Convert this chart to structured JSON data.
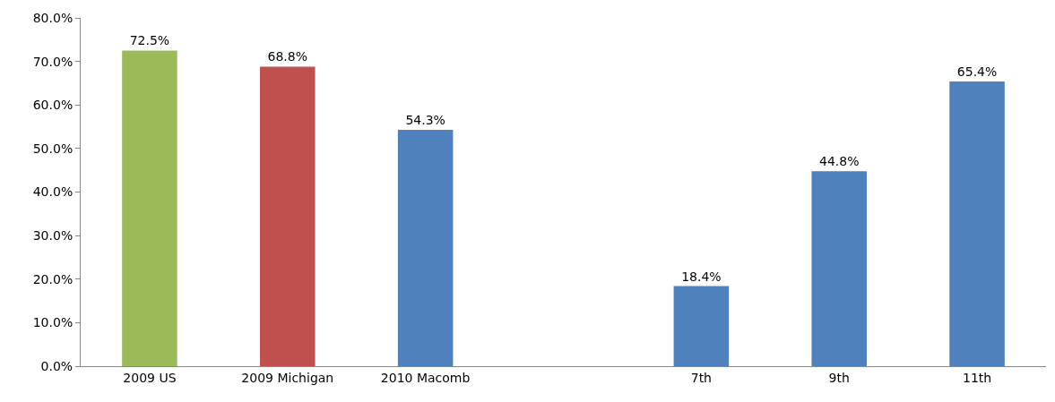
{
  "chart_data": {
    "type": "bar",
    "categories": [
      "2009 US",
      "2009 Michigan",
      "2010 Macomb",
      null,
      "7th",
      "9th",
      "11th"
    ],
    "values": [
      72.5,
      68.8,
      54.3,
      null,
      18.4,
      44.8,
      65.4
    ],
    "colors": [
      "#9bbb59",
      "#c0504d",
      "#4f81bd",
      "#4f81bd",
      "#4f81bd",
      "#4f81bd",
      "#4f81bd"
    ],
    "value_labels": [
      "72.5%",
      "68.8%",
      "54.3%",
      null,
      "18.4%",
      "44.8%",
      "65.4%"
    ],
    "ylim": [
      0,
      80
    ],
    "yticks": [
      {
        "value": 0,
        "label": "0.0%"
      },
      {
        "value": 10,
        "label": "10.0%"
      },
      {
        "value": 20,
        "label": "20.0%"
      },
      {
        "value": 30,
        "label": "30.0%"
      },
      {
        "value": 40,
        "label": "40.0%"
      },
      {
        "value": 50,
        "label": "50.0%"
      },
      {
        "value": 60,
        "label": "60.0%"
      },
      {
        "value": 70,
        "label": "70.0%"
      },
      {
        "value": 80,
        "label": "80.0%"
      }
    ]
  }
}
